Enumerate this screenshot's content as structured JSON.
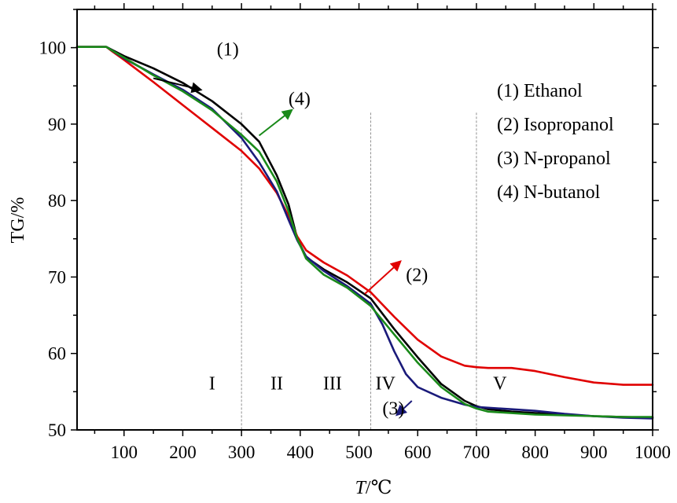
{
  "chart_data": {
    "type": "line",
    "xlabel": {
      "var": "T",
      "unit": "/℃"
    },
    "ylabel": "TG/%",
    "xlim": [
      20,
      1000
    ],
    "ylim": [
      50,
      105
    ],
    "x_ticks": [
      100,
      200,
      300,
      400,
      500,
      600,
      700,
      800,
      900,
      1000
    ],
    "y_ticks": [
      50,
      60,
      70,
      80,
      90,
      100
    ],
    "grid": false,
    "legend_position": "top-right",
    "legend": [
      "(1) Ethanol",
      "(2) Isopropanol",
      "(3) N-propanol",
      "(4) N-butanol"
    ],
    "stage_dividers_x": [
      300,
      520,
      700
    ],
    "stages": [
      {
        "label": "I",
        "x": 250
      },
      {
        "label": "II",
        "x": 360
      },
      {
        "label": "III",
        "x": 455
      },
      {
        "label": "IV",
        "x": 545
      },
      {
        "label": "V",
        "x": 740
      }
    ],
    "curve_labels": [
      {
        "text": "(1)",
        "from": [
          150,
          96
        ],
        "to": [
          230,
          94.5
        ],
        "label_at": [
          258,
          99
        ]
      },
      {
        "text": "(4)",
        "from": [
          330,
          88.5
        ],
        "to": [
          385,
          91.8
        ],
        "label_at": [
          380,
          92.5
        ]
      },
      {
        "text": "(2)",
        "from": [
          510,
          67.8
        ],
        "to": [
          570,
          72
        ],
        "label_at": [
          580,
          69.5
        ]
      },
      {
        "text": "(3)",
        "from": [
          590,
          53.8
        ],
        "to": [
          565,
          52
        ],
        "label_at": [
          540,
          52
        ]
      }
    ],
    "series": [
      {
        "name": "(1) Ethanol",
        "color": "#000000",
        "x": [
          20,
          70,
          80,
          100,
          150,
          200,
          250,
          300,
          330,
          360,
          380,
          395,
          410,
          440,
          480,
          520,
          560,
          600,
          640,
          680,
          700,
          720,
          760,
          800,
          850,
          900,
          950,
          1000
        ],
        "y": [
          100.1,
          100.1,
          99.7,
          98.9,
          97.3,
          95.4,
          93,
          90,
          87.7,
          83.3,
          79.5,
          75,
          72.6,
          71,
          69.3,
          67.2,
          63.2,
          59.5,
          56,
          53.8,
          53.1,
          52.7,
          52.4,
          52.2,
          52,
          51.8,
          51.7,
          51.6
        ]
      },
      {
        "name": "(2) Isopropanol",
        "color": "#e00000",
        "x": [
          20,
          70,
          80,
          100,
          150,
          200,
          250,
          300,
          330,
          360,
          380,
          395,
          410,
          440,
          480,
          520,
          560,
          600,
          640,
          680,
          700,
          720,
          760,
          800,
          850,
          900,
          950,
          1000
        ],
        "y": [
          100.1,
          100.1,
          99.5,
          98.4,
          95.5,
          92.5,
          89.5,
          86.5,
          84.2,
          81,
          78,
          75.3,
          73.5,
          71.9,
          70.2,
          68,
          64.8,
          61.8,
          59.6,
          58.4,
          58.2,
          58.1,
          58.1,
          57.7,
          56.9,
          56.2,
          55.9,
          55.9
        ]
      },
      {
        "name": "(3) N-propanol",
        "color": "#1a1a7a",
        "x": [
          20,
          70,
          80,
          100,
          150,
          200,
          250,
          300,
          330,
          360,
          380,
          395,
          410,
          440,
          480,
          520,
          540,
          560,
          580,
          600,
          640,
          680,
          700,
          720,
          760,
          800,
          850,
          900,
          950,
          1000
        ],
        "y": [
          100.1,
          100.1,
          99.6,
          98.6,
          96.5,
          94.5,
          92,
          88.2,
          85,
          81.2,
          77.5,
          74.8,
          72.7,
          70.8,
          68.8,
          66.5,
          63.8,
          60.3,
          57.3,
          55.6,
          54.2,
          53.3,
          53,
          52.9,
          52.7,
          52.5,
          52.1,
          51.8,
          51.6,
          51.5
        ]
      },
      {
        "name": "(4) N-butanol",
        "color": "#1a8a1a",
        "x": [
          20,
          70,
          80,
          100,
          150,
          200,
          250,
          300,
          330,
          360,
          380,
          395,
          410,
          440,
          480,
          520,
          560,
          600,
          640,
          680,
          700,
          720,
          760,
          800,
          850,
          900,
          950,
          1000
        ],
        "y": [
          100.1,
          100.1,
          99.6,
          98.7,
          96.4,
          94.3,
          91.8,
          88.6,
          86.4,
          82.5,
          78.6,
          75,
          72.4,
          70.3,
          68.6,
          66.2,
          62.5,
          58.8,
          55.6,
          53.4,
          52.8,
          52.4,
          52.2,
          52,
          51.9,
          51.8,
          51.7,
          51.7
        ]
      }
    ]
  }
}
